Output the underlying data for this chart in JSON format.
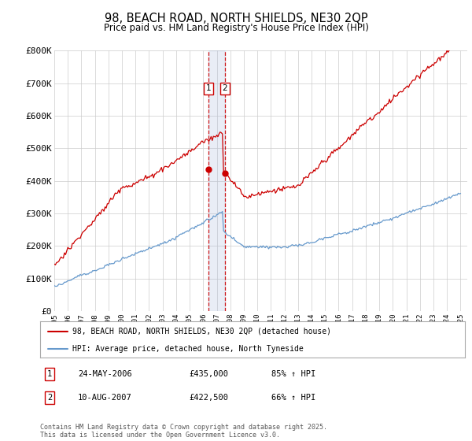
{
  "title": "98, BEACH ROAD, NORTH SHIELDS, NE30 2QP",
  "subtitle": "Price paid vs. HM Land Registry's House Price Index (HPI)",
  "ylim": [
    0,
    800000
  ],
  "yticks": [
    0,
    100000,
    200000,
    300000,
    400000,
    500000,
    600000,
    700000,
    800000
  ],
  "ytick_labels": [
    "£0",
    "£100K",
    "£200K",
    "£300K",
    "£400K",
    "£500K",
    "£600K",
    "£700K",
    "£800K"
  ],
  "red_color": "#cc0000",
  "blue_color": "#6699cc",
  "vline_color": "#cc0000",
  "vline2_color": "#aabbdd",
  "legend_label_red": "98, BEACH ROAD, NORTH SHIELDS, NE30 2QP (detached house)",
  "legend_label_blue": "HPI: Average price, detached house, North Tyneside",
  "sale1_date": 2006.39,
  "sale1_price": 435000,
  "sale1_text": "24-MAY-2006",
  "sale1_pct": "85% ↑ HPI",
  "sale2_date": 2007.6,
  "sale2_price": 422500,
  "sale2_text": "10-AUG-2007",
  "sale2_pct": "66% ↑ HPI",
  "footnote": "Contains HM Land Registry data © Crown copyright and database right 2025.\nThis data is licensed under the Open Government Licence v3.0.",
  "background_color": "#ffffff",
  "grid_color": "#cccccc"
}
